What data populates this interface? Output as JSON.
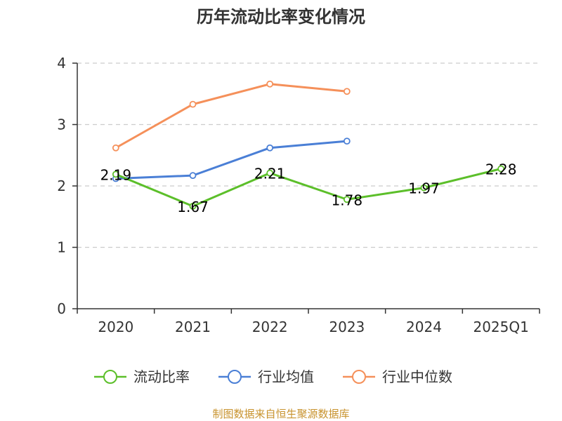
{
  "chart_data": {
    "type": "line",
    "title": "历年流动比率变化情况",
    "categories": [
      "2020",
      "2021",
      "2022",
      "2023",
      "2024",
      "2025Q1"
    ],
    "y_ticks": [
      "0",
      "1",
      "2",
      "3",
      "4"
    ],
    "ylim": [
      0,
      4
    ],
    "grid": true,
    "legend_position": "bottom",
    "series": [
      {
        "name": "流动比率",
        "color": "#5cbf2a",
        "labels_shown": true,
        "values": [
          2.19,
          1.67,
          2.21,
          1.78,
          1.97,
          2.28
        ],
        "labels": [
          "2.19",
          "1.67",
          "2.21",
          "1.78",
          "1.97",
          "2.28"
        ]
      },
      {
        "name": "行业均值",
        "color": "#4a7fd6",
        "labels_shown": false,
        "values": [
          2.12,
          2.17,
          2.62,
          2.73,
          null,
          null
        ]
      },
      {
        "name": "行业中位数",
        "color": "#f5905a",
        "labels_shown": false,
        "values": [
          2.62,
          3.33,
          3.66,
          3.54,
          null,
          null
        ]
      }
    ],
    "source": "制图数据来自恒生聚源数据库",
    "source_color": "#c8932e"
  }
}
